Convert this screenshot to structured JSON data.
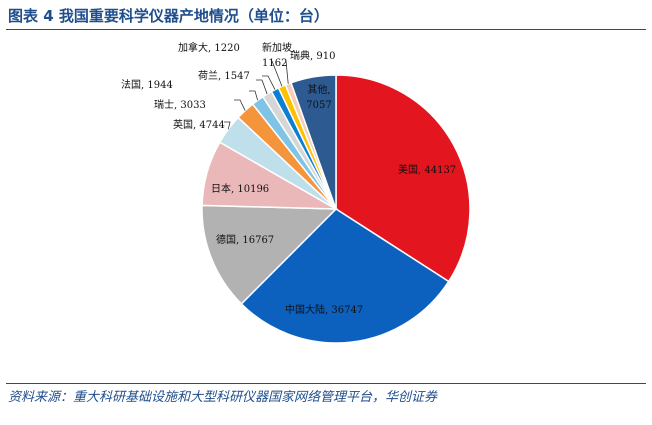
{
  "header": {
    "title": "图表 4  我国重要科学仪器产地情况（单位：台）"
  },
  "footer": {
    "source": "资料来源：重大科研基础设施和大型科研仪器国家网络管理平台，华创证券"
  },
  "chart_data": {
    "type": "pie",
    "title": "图表 4  我国重要科学仪器产地情况（单位：台）",
    "slices": [
      {
        "label": "美国",
        "value": 44137,
        "color": "#e3151f"
      },
      {
        "label": "中国大陆",
        "value": 36747,
        "color": "#0c61be"
      },
      {
        "label": "德国",
        "value": 16767,
        "color": "#b2b2b2"
      },
      {
        "label": "日本",
        "value": 10196,
        "color": "#eab8b9"
      },
      {
        "label": "英国",
        "value": 4744,
        "color": "#bfe0ea"
      },
      {
        "label": "瑞士",
        "value": 3033,
        "color": "#f4943b"
      },
      {
        "label": "法国",
        "value": 1944,
        "color": "#7fc4e4"
      },
      {
        "label": "荷兰",
        "value": 1547,
        "color": "#d6d6d6"
      },
      {
        "label": "加拿大",
        "value": 1220,
        "color": "#0d7fd1"
      },
      {
        "label": "新加坡",
        "value": 1162,
        "color": "#ffc000"
      },
      {
        "label": "瑞典",
        "value": 910,
        "color": "#f3cdb8"
      },
      {
        "label": "其他",
        "value": 7057,
        "color": "#2d5b91"
      }
    ],
    "data_labels": [
      {
        "text": "美国, 44137"
      },
      {
        "text": "中国大陆, 36747"
      },
      {
        "text": "德国, 16767"
      },
      {
        "text": "日本, 10196"
      },
      {
        "text": "英国, 4744"
      },
      {
        "text": "瑞士, 3033"
      },
      {
        "text": "法国, 1944"
      },
      {
        "text": "荷兰, 1547"
      },
      {
        "text": "加拿大, 1220"
      },
      {
        "text": "新加坡,"
      },
      {
        "text": "1162"
      },
      {
        "text": "瑞典, 910"
      },
      {
        "text": "其他,"
      },
      {
        "text": "7057"
      }
    ]
  }
}
